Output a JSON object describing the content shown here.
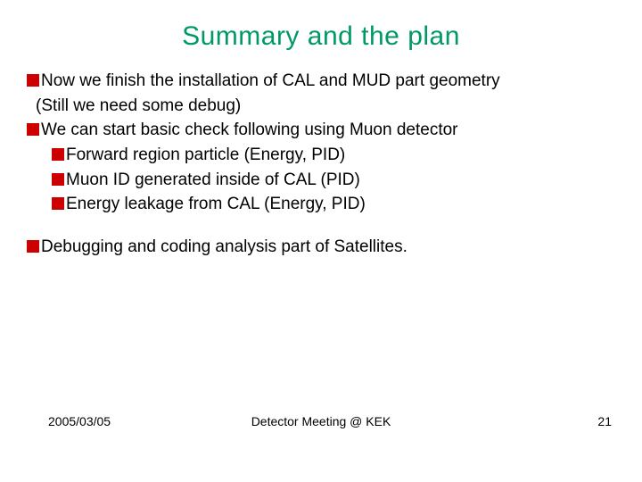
{
  "title": "Summary and the plan",
  "title_color": "#009966",
  "title_fontsize": 30,
  "bullet_color": "#cc0000",
  "bullet_size": 14,
  "text_color": "#000000",
  "text_fontsize": 19,
  "background_color": "#ffffff",
  "lines": {
    "l0": "Now we finish the installation of CAL and MUD part geometry",
    "l0b": "(Still we need some debug)",
    "l1": "We can start basic check following using Muon detector",
    "l1a": "Forward region particle (Energy, PID)",
    "l1b": "Muon ID generated inside of CAL (PID)",
    "l1c": "Energy leakage from CAL (Energy, PID)",
    "l2": "Debugging and coding analysis part of Satellites."
  },
  "footer": {
    "date": "2005/03/05",
    "center": "Detector Meeting @ KEK",
    "page": "21",
    "fontsize": 14
  }
}
